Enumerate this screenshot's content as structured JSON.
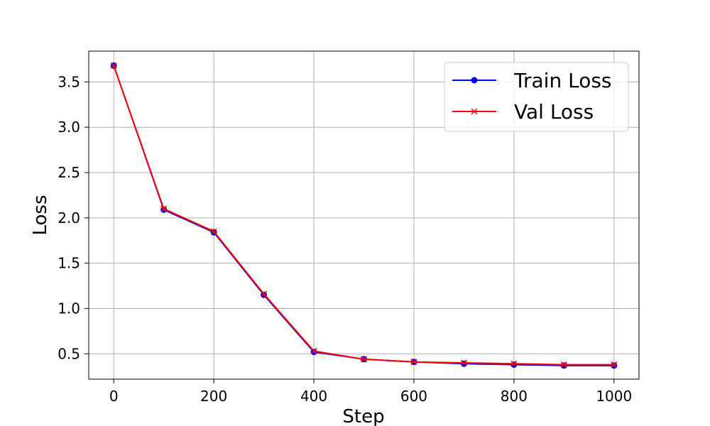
{
  "chart_data": {
    "type": "line",
    "title": "",
    "xlabel": "Step",
    "ylabel": "Loss",
    "xlim": [
      -50,
      1050
    ],
    "ylim": [
      0.22,
      3.84
    ],
    "xticks": [
      0,
      200,
      400,
      600,
      800,
      1000
    ],
    "yticks": [
      0.5,
      1.0,
      1.5,
      2.0,
      2.5,
      3.0,
      3.5
    ],
    "xtick_labels": [
      "0",
      "200",
      "400",
      "600",
      "800",
      "1000"
    ],
    "ytick_labels": [
      "0.5",
      "1.0",
      "1.5",
      "2.0",
      "2.5",
      "3.0",
      "3.5"
    ],
    "grid": true,
    "legend_position": "top-right",
    "x": [
      0,
      100,
      200,
      300,
      400,
      500,
      600,
      700,
      800,
      900,
      1000
    ],
    "series": [
      {
        "name": "Train Loss",
        "color": "#0000ff",
        "marker": "circle",
        "values": [
          3.68,
          2.09,
          1.84,
          1.15,
          0.52,
          0.44,
          0.41,
          0.39,
          0.38,
          0.37,
          0.37
        ]
      },
      {
        "name": "Val Loss",
        "color": "#ff0000",
        "marker": "x",
        "values": [
          3.68,
          2.1,
          1.85,
          1.16,
          0.53,
          0.44,
          0.41,
          0.4,
          0.39,
          0.38,
          0.38
        ]
      }
    ]
  }
}
